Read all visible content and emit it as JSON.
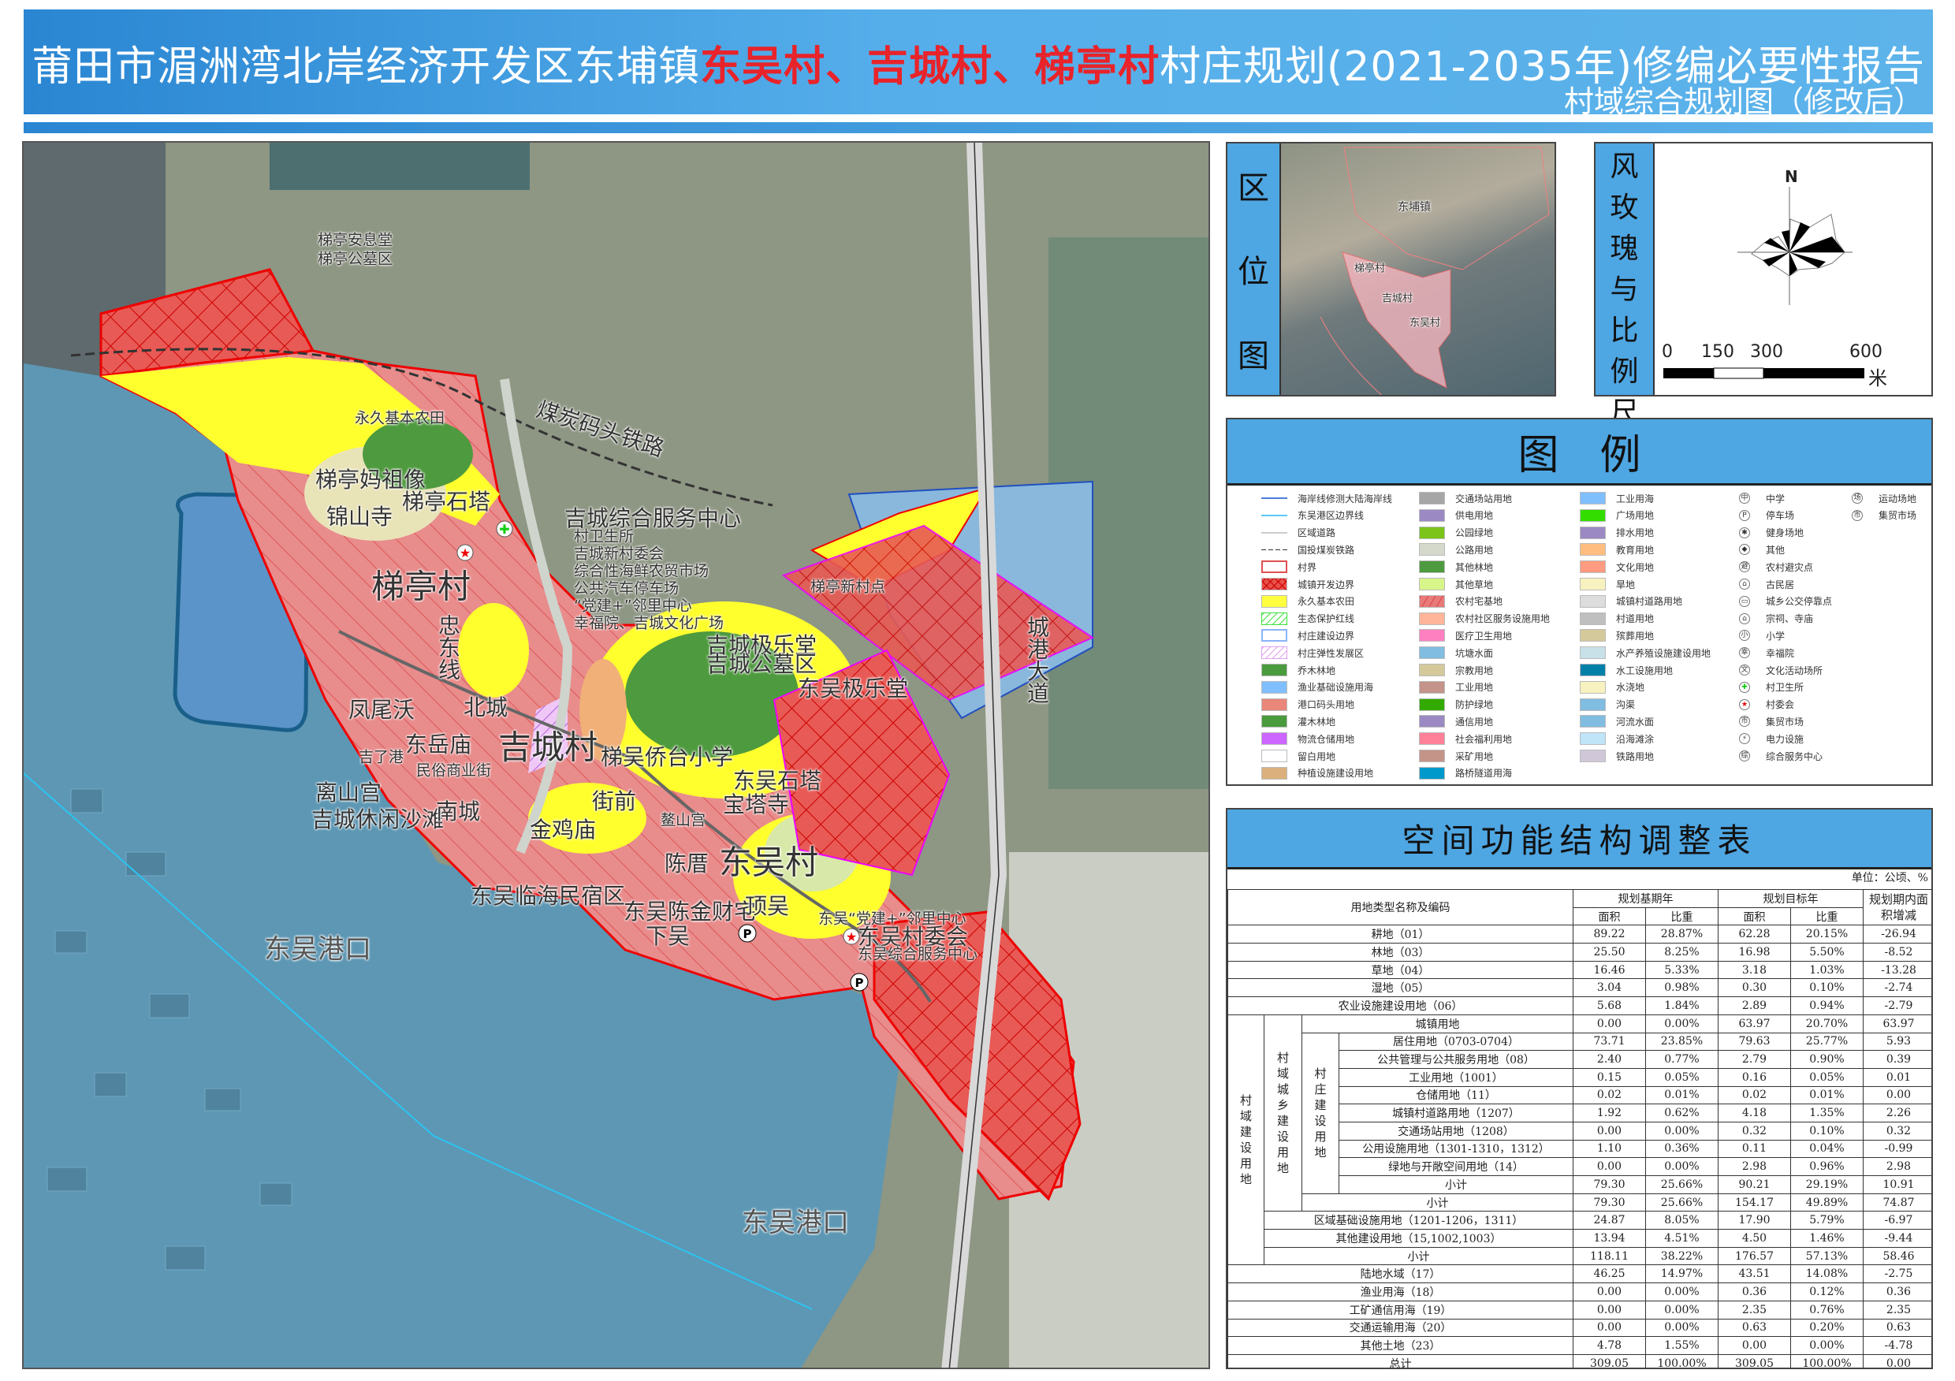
{
  "header": {
    "title_prefix": "莆田市湄洲湾北岸经济开发区东埔镇",
    "title_highlight": "东吴村、吉城村、梯亭村",
    "title_suffix": "村庄规划(2021-2035年)修编必要性报告",
    "subtitle": "村域综合规划图（修改后）"
  },
  "map": {
    "labels": [
      {
        "text": "梯亭安息堂",
        "size": "s"
      },
      {
        "text": "梯亭公墓区",
        "size": "s"
      },
      {
        "text": "永久基本农田",
        "size": "s"
      },
      {
        "text": "梯亭妈祖像",
        "size": "m"
      },
      {
        "text": "梯亭石塔",
        "size": "m"
      },
      {
        "text": "锦山寺",
        "size": "m"
      },
      {
        "text": "梯亭村",
        "size": "l"
      },
      {
        "text": "吉城综合服务中心",
        "size": "m"
      },
      {
        "text": "村卫生所",
        "size": "s"
      },
      {
        "text": "吉城新村委会",
        "size": "s"
      },
      {
        "text": "综合性海鲜农贸市场",
        "size": "s"
      },
      {
        "text": "公共汽车停车场",
        "size": "s"
      },
      {
        "text": "“党建+”邻里中心",
        "size": "s"
      },
      {
        "text": "幸福院、吉城文化广场",
        "size": "s"
      },
      {
        "text": "煤炭码头铁路",
        "size": "m"
      },
      {
        "text": "忠东线",
        "size": "m"
      },
      {
        "text": "梯亭新村点",
        "size": "s"
      },
      {
        "text": "吉城极乐堂",
        "size": "m"
      },
      {
        "text": "吉城公墓区",
        "size": "m"
      },
      {
        "text": "东吴极乐堂",
        "size": "m"
      },
      {
        "text": "梯吴侨台小学",
        "size": "m"
      },
      {
        "text": "东吴石塔",
        "size": "m"
      },
      {
        "text": "宝塔寺",
        "size": "m"
      },
      {
        "text": "凤尾沃",
        "size": "m"
      },
      {
        "text": "北城",
        "size": "m"
      },
      {
        "text": "东岳庙",
        "size": "m"
      },
      {
        "text": "吉城村",
        "size": "l"
      },
      {
        "text": "吉了港",
        "size": "s"
      },
      {
        "text": "民俗商业街",
        "size": "s"
      },
      {
        "text": "离山宫",
        "size": "m"
      },
      {
        "text": "吉城休闲沙滩",
        "size": "m"
      },
      {
        "text": "南城",
        "size": "m"
      },
      {
        "text": "金鸡庙",
        "size": "m"
      },
      {
        "text": "街前",
        "size": "m"
      },
      {
        "text": "鳌山宫",
        "size": "s"
      },
      {
        "text": "陈厝",
        "size": "m"
      },
      {
        "text": "东吴村",
        "size": "l"
      },
      {
        "text": "东吴临海民宿区",
        "size": "m"
      },
      {
        "text": "东吴陈金财宅",
        "size": "m"
      },
      {
        "text": "下吴",
        "size": "m"
      },
      {
        "text": "顶吴",
        "size": "m"
      },
      {
        "text": "东吴“党建+”邻里中心",
        "size": "s"
      },
      {
        "text": "东吴村委会",
        "size": "m"
      },
      {
        "text": "东吴综合服务中心",
        "size": "s"
      },
      {
        "text": "东吴港口",
        "size": "xl"
      },
      {
        "text": "东吴港口",
        "size": "xl"
      }
    ],
    "road_label": "城港大道"
  },
  "location": {
    "label": [
      "区",
      "位",
      "图"
    ],
    "places": [
      "东埔镇",
      "梯亭村",
      "吉城村",
      "东吴村"
    ]
  },
  "windrose": {
    "label": [
      "风",
      "玫",
      "瑰",
      "与",
      "比",
      "例",
      "尺"
    ],
    "north": "N",
    "scale_ticks": [
      "0",
      "150",
      "300",
      "600"
    ],
    "scale_unit": "米"
  },
  "legend": {
    "title": "图　例",
    "columns": [
      [
        {
          "label": "海岸线修测大陆海岸线",
          "style": "line",
          "color": "#4a7fd4"
        },
        {
          "label": "东吴港区边界线",
          "style": "line",
          "color": "#5bc8f5"
        },
        {
          "label": "区域道路",
          "style": "line",
          "color": "#cccccc"
        },
        {
          "label": "国投煤炭铁路",
          "style": "dashline",
          "color": "#333333"
        },
        {
          "label": "村界",
          "style": "outline",
          "color": "#e05050"
        },
        {
          "label": "城镇开发边界",
          "style": "crosshatch",
          "color": "#e8504a"
        },
        {
          "label": "永久基本农田",
          "style": "fill",
          "color": "#ffff40"
        },
        {
          "label": "生态保护红线",
          "style": "hatch",
          "color": "#40e040"
        },
        {
          "label": "村庄建设边界",
          "style": "outline",
          "color": "#8ab4f8"
        },
        {
          "label": "村庄弹性发展区",
          "style": "hatch",
          "color": "#e0a0f0"
        },
        {
          "label": "乔木林地",
          "style": "fill",
          "color": "#4a9a3e"
        },
        {
          "label": "渔业基础设施用海",
          "style": "fill",
          "color": "#80bfff"
        },
        {
          "label": "港口码头用地",
          "style": "fill",
          "color": "#e8877a"
        },
        {
          "label": "灌木林地",
          "style": "fill",
          "color": "#4a9a3e"
        },
        {
          "label": "物流仓储用地",
          "style": "fill",
          "color": "#cc66ff"
        },
        {
          "label": "留白用地",
          "style": "fill",
          "color": "#ffffff"
        },
        {
          "label": "种植设施建设用地",
          "style": "fill",
          "color": "#dcb07c"
        }
      ],
      [
        {
          "label": "交通场站用地",
          "style": "fill",
          "color": "#a6a6a6"
        },
        {
          "label": "供电用地",
          "style": "fill",
          "color": "#9b89c4"
        },
        {
          "label": "公园绿地",
          "style": "fill",
          "color": "#7cc41a"
        },
        {
          "label": "公路用地",
          "style": "fill",
          "color": "#d4d9cc"
        },
        {
          "label": "其他林地",
          "style": "fill",
          "color": "#4e9a3e"
        },
        {
          "label": "其他草地",
          "style": "fill",
          "color": "#d8f58a"
        },
        {
          "label": "农村宅基地",
          "style": "redhatch",
          "color": "#e87a7a"
        },
        {
          "label": "农村社区服务设施用地",
          "style": "fill",
          "color": "#ffb59a"
        },
        {
          "label": "医疗卫生用地",
          "style": "fill",
          "color": "#ff80c0"
        },
        {
          "label": "坑塘水面",
          "style": "fill",
          "color": "#80bde0"
        },
        {
          "label": "宗教用地",
          "style": "fill",
          "color": "#d4c99a"
        },
        {
          "label": "工业用地",
          "style": "fill",
          "color": "#c4938a"
        },
        {
          "label": "防护绿地",
          "style": "fill",
          "color": "#33aa00"
        },
        {
          "label": "通信用地",
          "style": "fill",
          "color": "#9b89c4"
        },
        {
          "label": "社会福利用地",
          "style": "fill",
          "color": "#ff8099"
        },
        {
          "label": "采矿用地",
          "style": "fill",
          "color": "#c49488"
        },
        {
          "label": "路桥隧道用海",
          "style": "fill",
          "color": "#0099cc"
        }
      ],
      [
        {
          "label": "工业用海",
          "style": "fill",
          "color": "#80bfff"
        },
        {
          "label": "广场用地",
          "style": "fill",
          "color": "#33dd00"
        },
        {
          "label": "排水用地",
          "style": "fill",
          "color": "#9b89c4"
        },
        {
          "label": "教育用地",
          "style": "fill",
          "color": "#ffbe80"
        },
        {
          "label": "文化用地",
          "style": "fill",
          "color": "#ff9b80"
        },
        {
          "label": "旱地",
          "style": "fill",
          "color": "#f8f2c0"
        },
        {
          "label": "城镇村道路用地",
          "style": "fill",
          "color": "#dddddd"
        },
        {
          "label": "村道用地",
          "style": "fill",
          "color": "#bfbfbf"
        },
        {
          "label": "殡葬用地",
          "style": "fill",
          "color": "#d4c99a"
        },
        {
          "label": "水产养殖设施建设用地",
          "style": "fill",
          "color": "#c8e0e8"
        },
        {
          "label": "水工设施用地",
          "style": "fill",
          "color": "#0080a8"
        },
        {
          "label": "水浇地",
          "style": "fill",
          "color": "#f8f2c0"
        },
        {
          "label": "沟渠",
          "style": "fill",
          "color": "#80bde0"
        },
        {
          "label": "河流水面",
          "style": "fill",
          "color": "#80bde0"
        },
        {
          "label": "沿海滩涂",
          "style": "fill",
          "color": "#c0e4f8"
        },
        {
          "label": "铁路用地",
          "style": "fill",
          "color": "#d0c8d8"
        }
      ],
      [
        {
          "label": "中学",
          "icon": "middle-school"
        },
        {
          "label": "停车场",
          "icon": "parking"
        },
        {
          "label": "健身场地",
          "icon": "fitness"
        },
        {
          "label": "其他",
          "icon": "other"
        },
        {
          "label": "农村避灾点",
          "icon": "shelter"
        },
        {
          "label": "古民居",
          "icon": "old-house"
        },
        {
          "label": "城乡公交停靠点",
          "icon": "bus-stop"
        },
        {
          "label": "宗祠、寺庙",
          "icon": "temple"
        },
        {
          "label": "小学",
          "icon": "primary-school"
        },
        {
          "label": "幸福院",
          "icon": "elderly-home"
        },
        {
          "label": "文化活动场所",
          "icon": "culture"
        },
        {
          "label": "村卫生所",
          "icon": "clinic"
        },
        {
          "label": "村委会",
          "icon": "village-committee"
        },
        {
          "label": "集贸市场",
          "icon": "market"
        },
        {
          "label": "电力设施",
          "icon": "power"
        },
        {
          "label": "综合服务中心",
          "icon": "service-center"
        }
      ],
      [
        {
          "label": "运动场地",
          "icon": "sports"
        },
        {
          "label": "集贸市场",
          "icon": "market"
        }
      ]
    ]
  },
  "table": {
    "title": "空间功能结构调整表",
    "unit": "单位：公顷、%",
    "headers": {
      "name": "用地类型名称及编码",
      "base": "规划基期年",
      "target": "规划目标年",
      "change": "规划期内面积增减",
      "area": "面积",
      "ratio": "比重"
    },
    "groups": {
      "village_construction": "村域建设用地",
      "urban_rural": "村域城乡建设用地",
      "village_build": "村庄建设用地"
    },
    "rows": [
      {
        "name": "耕地（01）",
        "base_area": "89.22",
        "base_ratio": "28.87%",
        "target_area": "62.28",
        "target_ratio": "20.15%",
        "change": "-26.94"
      },
      {
        "name": "林地（03）",
        "base_area": "25.50",
        "base_ratio": "8.25%",
        "target_area": "16.98",
        "target_ratio": "5.50%",
        "change": "-8.52"
      },
      {
        "name": "草地（04）",
        "base_area": "16.46",
        "base_ratio": "5.33%",
        "target_area": "3.18",
        "target_ratio": "1.03%",
        "change": "-13.28"
      },
      {
        "name": "湿地（05）",
        "base_area": "3.04",
        "base_ratio": "0.98%",
        "target_area": "0.30",
        "target_ratio": "0.10%",
        "change": "-2.74"
      },
      {
        "name": "农业设施建设用地（06）",
        "base_area": "5.68",
        "base_ratio": "1.84%",
        "target_area": "2.89",
        "target_ratio": "0.94%",
        "change": "-2.79"
      },
      {
        "name": "城镇用地",
        "base_area": "0.00",
        "base_ratio": "0.00%",
        "target_area": "63.97",
        "target_ratio": "20.70%",
        "change": "63.97"
      },
      {
        "name": "居住用地（0703-0704）",
        "base_area": "73.71",
        "base_ratio": "23.85%",
        "target_area": "79.63",
        "target_ratio": "25.77%",
        "change": "5.93"
      },
      {
        "name": "公共管理与公共服务用地（08）",
        "base_area": "2.40",
        "base_ratio": "0.77%",
        "target_area": "2.79",
        "target_ratio": "0.90%",
        "change": "0.39"
      },
      {
        "name": "工业用地（1001）",
        "base_area": "0.15",
        "base_ratio": "0.05%",
        "target_area": "0.16",
        "target_ratio": "0.05%",
        "change": "0.01"
      },
      {
        "name": "仓储用地（11）",
        "base_area": "0.02",
        "base_ratio": "0.01%",
        "target_area": "0.02",
        "target_ratio": "0.01%",
        "change": "0.00"
      },
      {
        "name": "城镇村道路用地（1207）",
        "base_area": "1.92",
        "base_ratio": "0.62%",
        "target_area": "4.18",
        "target_ratio": "1.35%",
        "change": "2.26"
      },
      {
        "name": "交通场站用地（1208）",
        "base_area": "0.00",
        "base_ratio": "0.00%",
        "target_area": "0.32",
        "target_ratio": "0.10%",
        "change": "0.32"
      },
      {
        "name": "公用设施用地（1301-1310，1312）",
        "base_area": "1.10",
        "base_ratio": "0.36%",
        "target_area": "0.11",
        "target_ratio": "0.04%",
        "change": "-0.99"
      },
      {
        "name": "绿地与开敞空间用地（14）",
        "base_area": "0.00",
        "base_ratio": "0.00%",
        "target_area": "2.98",
        "target_ratio": "0.96%",
        "change": "2.98"
      },
      {
        "name": "小计",
        "base_area": "79.30",
        "base_ratio": "25.66%",
        "target_area": "90.21",
        "target_ratio": "29.19%",
        "change": "10.91"
      },
      {
        "name": "小计",
        "base_area": "79.30",
        "base_ratio": "25.66%",
        "target_area": "154.17",
        "target_ratio": "49.89%",
        "change": "74.87"
      },
      {
        "name": "区域基础设施用地（1201-1206，1311）",
        "base_area": "24.87",
        "base_ratio": "8.05%",
        "target_area": "17.90",
        "target_ratio": "5.79%",
        "change": "-6.97"
      },
      {
        "name": "其他建设用地（15,1002,1003）",
        "base_area": "13.94",
        "base_ratio": "4.51%",
        "target_area": "4.50",
        "target_ratio": "1.46%",
        "change": "-9.44"
      },
      {
        "name": "小计",
        "base_area": "118.11",
        "base_ratio": "38.22%",
        "target_area": "176.57",
        "target_ratio": "57.13%",
        "change": "58.46"
      },
      {
        "name": "陆地水域（17）",
        "base_area": "46.25",
        "base_ratio": "14.97%",
        "target_area": "43.51",
        "target_ratio": "14.08%",
        "change": "-2.75"
      },
      {
        "name": "渔业用海（18）",
        "base_area": "0.00",
        "base_ratio": "0.00%",
        "target_area": "0.36",
        "target_ratio": "0.12%",
        "change": "0.36"
      },
      {
        "name": "工矿通信用海（19）",
        "base_area": "0.00",
        "base_ratio": "0.00%",
        "target_area": "2.35",
        "target_ratio": "0.76%",
        "change": "2.35"
      },
      {
        "name": "交通运输用海（20）",
        "base_area": "0.00",
        "base_ratio": "0.00%",
        "target_area": "0.63",
        "target_ratio": "0.20%",
        "change": "0.63"
      },
      {
        "name": "其他土地（23）",
        "base_area": "4.78",
        "base_ratio": "1.55%",
        "target_area": "0.00",
        "target_ratio": "0.00%",
        "change": "-4.78"
      },
      {
        "name": "总计",
        "base_area": "309.05",
        "base_ratio": "100.00%",
        "target_area": "309.05",
        "target_ratio": "100.00%",
        "change": "0.00"
      }
    ]
  }
}
